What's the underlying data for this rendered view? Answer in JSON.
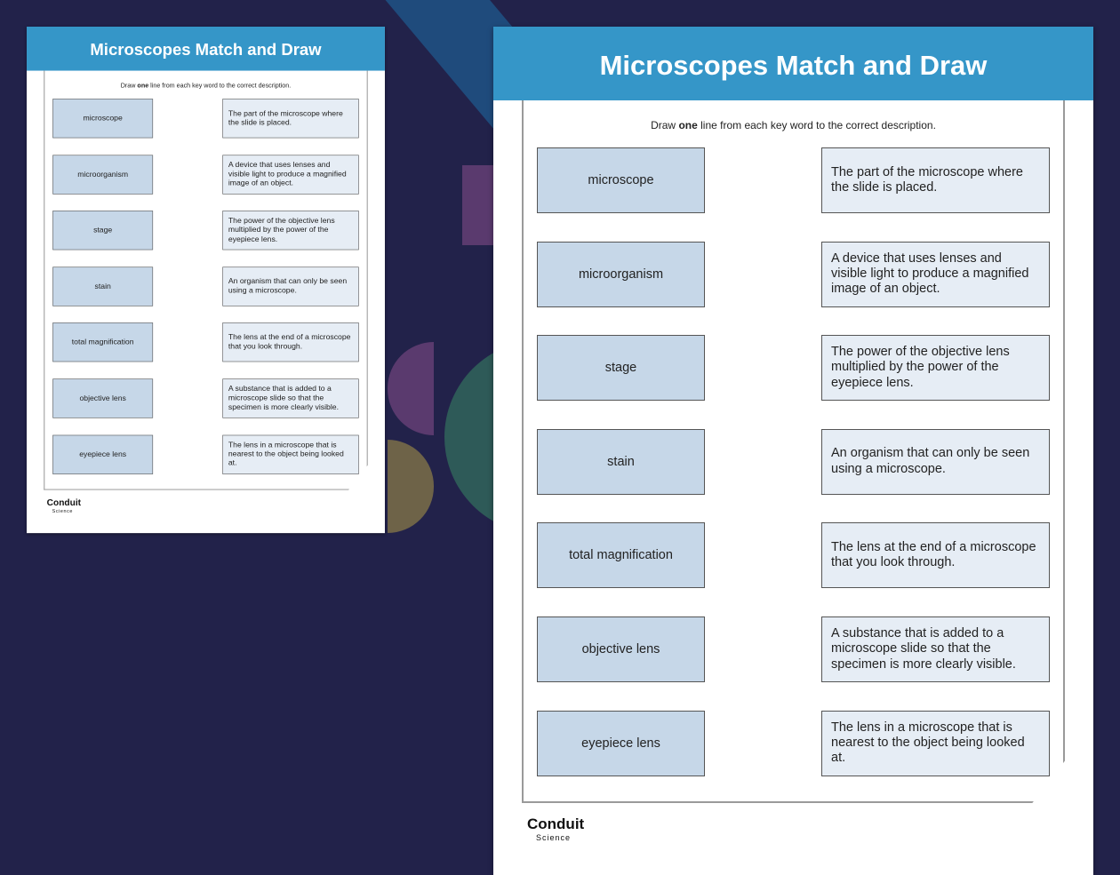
{
  "title": "Microscopes Match and Draw",
  "instruction": {
    "pre": "Draw ",
    "bold": "one",
    "post": " line from each key word to the correct description."
  },
  "keywords": [
    "microscope",
    "microorganism",
    "stage",
    "stain",
    "total magnification",
    "objective lens",
    "eyepiece lens"
  ],
  "descriptions": [
    "The part of the microscope where the slide is placed.",
    "A device that uses lenses and visible light to produce a magnified image of an object.",
    "The power of the objective lens multiplied by the power of the eyepiece lens.",
    "An organism that can only be seen using a microscope.",
    "The lens at the end of a microscope that you look through.",
    "A substance that is added to a microscope slide so that the specimen is more clearly visible.",
    "The lens in a microscope that is nearest to the object being looked at."
  ],
  "logo": {
    "name": "Conduit",
    "sub": "Science"
  },
  "colors": {
    "header": "#3596c8",
    "keyword_box": "#c6d7e8",
    "description_box": "#e6edf5",
    "background": "#22224a"
  }
}
